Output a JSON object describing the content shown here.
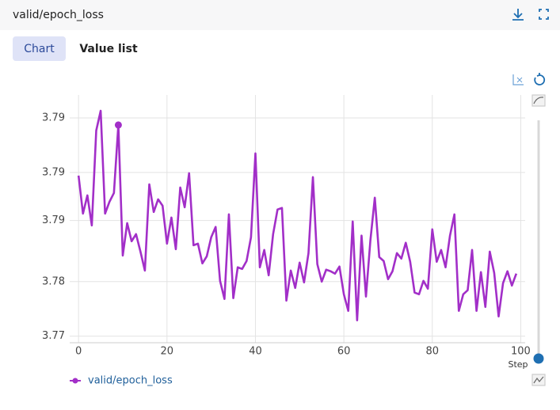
{
  "header": {
    "title": "valid/epoch_loss"
  },
  "tabs": [
    "Chart",
    "Value list"
  ],
  "chart_data": {
    "type": "line",
    "x_label": "Step",
    "x": [
      0,
      1,
      2,
      3,
      4,
      5,
      6,
      7,
      8,
      9,
      10,
      11,
      12,
      13,
      14,
      15,
      16,
      17,
      18,
      19,
      20,
      21,
      22,
      23,
      24,
      25,
      26,
      27,
      28,
      29,
      30,
      31,
      32,
      33,
      34,
      35,
      36,
      37,
      38,
      39,
      40,
      41,
      42,
      43,
      44,
      45,
      46,
      47,
      48,
      49,
      50,
      51,
      52,
      53,
      54,
      55,
      56,
      57,
      58,
      59,
      60,
      61,
      62,
      63,
      64,
      65,
      66,
      67,
      68,
      69,
      70,
      71,
      72,
      73,
      74,
      75,
      76,
      77,
      78,
      79,
      80,
      81,
      82,
      83,
      84,
      85,
      86,
      87,
      88,
      89,
      90,
      91,
      92,
      93,
      94,
      95,
      96,
      97,
      98,
      99
    ],
    "series": [
      {
        "name": "valid/epoch_loss",
        "color": "#a22fc8",
        "values": [
          3.78921,
          3.78573,
          3.7874,
          3.78465,
          3.79334,
          3.79515,
          3.78573,
          3.78682,
          3.78762,
          3.79385,
          3.78189,
          3.78486,
          3.7832,
          3.78385,
          3.78225,
          3.78051,
          3.78841,
          3.78588,
          3.78704,
          3.78646,
          3.78298,
          3.78537,
          3.78247,
          3.78812,
          3.78631,
          3.78943,
          3.78283,
          3.78298,
          3.78117,
          3.78182,
          3.78356,
          3.78451,
          3.77957,
          3.77791,
          3.78566,
          3.77798,
          3.78081,
          3.78066,
          3.78139,
          3.78356,
          3.79125,
          3.78081,
          3.7824,
          3.78008,
          3.78385,
          3.7861,
          3.78625,
          3.77776,
          3.78051,
          3.77892,
          3.78124,
          3.77943,
          3.78211,
          3.78907,
          3.7811,
          3.7795,
          3.78059,
          3.78045,
          3.78023,
          3.78088,
          3.77834,
          3.77682,
          3.78501,
          3.77595,
          3.78371,
          3.77813,
          3.78327,
          3.78719,
          3.78175,
          3.78139,
          3.77972,
          3.78045,
          3.78211,
          3.78161,
          3.78306,
          3.78132,
          3.77849,
          3.77834,
          3.77957,
          3.77885,
          3.78429,
          3.78132,
          3.7824,
          3.78081,
          3.78371,
          3.78566,
          3.77682,
          3.77834,
          3.77871,
          3.7824,
          3.77682,
          3.78037,
          3.77718,
          3.78225,
          3.7803,
          3.77631,
          3.77936,
          3.78045,
          3.77914,
          3.78023
        ]
      }
    ],
    "highlighted_point": 9,
    "xlim": [
      -2,
      101
    ],
    "xticks": [
      0,
      20,
      40,
      60,
      80,
      100
    ],
    "ylim": [
      3.7739,
      3.7966
    ],
    "yticks": [
      {
        "value": 3.7745,
        "label": "3.77"
      },
      {
        "value": 3.7795,
        "label": "3.78"
      },
      {
        "value": 3.7851,
        "label": "3.79"
      },
      {
        "value": 3.7895,
        "label": "3.79"
      },
      {
        "value": 3.7945,
        "label": "3.79"
      }
    ],
    "grid": true,
    "legend": "bottom-left"
  }
}
